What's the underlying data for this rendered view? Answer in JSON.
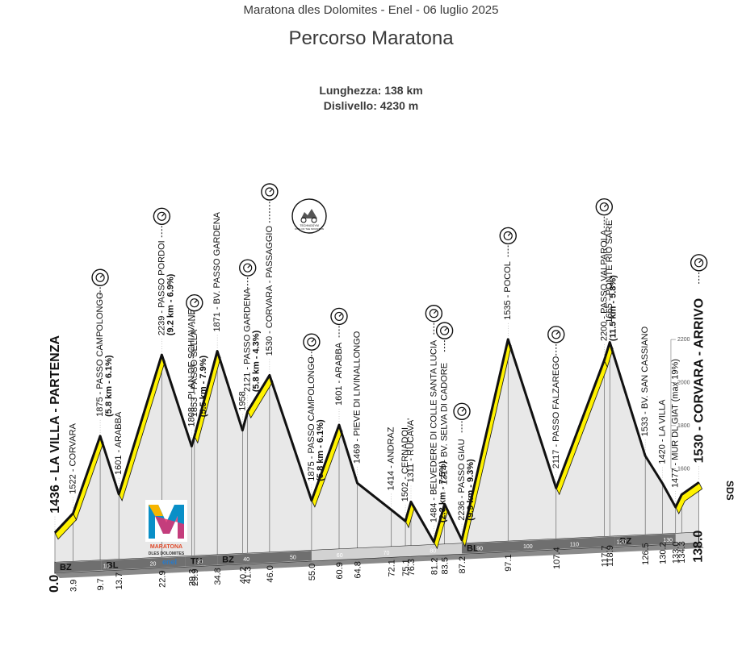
{
  "header": {
    "event": "Maratona dles Dolomites - Enel - 06 luglio 2025",
    "title": "Percorso Maratona",
    "length": "Lunghezza: 138 km",
    "climb": "Dislivello: 4230 m"
  },
  "logo": {
    "line1": "MARATONA",
    "line2": "DLES DOLOMITES",
    "brand": "enel"
  },
  "badge": {
    "line1": "TECHNOGYM",
    "line2": "KING OF THE MOUNTAIN"
  },
  "brand_mark": "SDS",
  "colors": {
    "climb": "#fff200",
    "profile_fill": "#e8e8e8",
    "outline": "#111111"
  },
  "icons": [
    "timing-icon",
    "cyclist-icon"
  ],
  "chart_data": {
    "type": "area",
    "title": "Percorso Maratona",
    "xlabel": "",
    "ylabel": "",
    "xlim": [
      0,
      138
    ],
    "ylim": [
      1300,
      2300
    ],
    "grid": false,
    "y_ticks": [
      1600,
      1800,
      2000,
      2200
    ],
    "x_ticks": [
      10,
      20,
      30,
      40,
      50,
      60,
      70,
      80,
      90,
      100,
      110,
      120,
      130
    ],
    "zones": [
      {
        "label": "BZ",
        "from": 0,
        "to": 10
      },
      {
        "label": "BL",
        "from": 10,
        "to": 28
      },
      {
        "label": "TN",
        "from": 28,
        "to": 34.8
      },
      {
        "label": "BZ",
        "from": 34.8,
        "to": 55
      },
      {
        "label": "BL",
        "from": 87.2,
        "to": 120
      },
      {
        "label": "BZ",
        "from": 120,
        "to": 133
      }
    ],
    "km_labels": [
      "0.0",
      "3.9",
      "9.7",
      "13.7",
      "22.9",
      "29.3",
      "29.9",
      "34.8",
      "40.2",
      "41.3",
      "46.0",
      "55.0",
      "60.9",
      "64.8",
      "72.1",
      "75.1",
      "76.3",
      "81.2",
      "83.5",
      "87.2",
      "97.1",
      "107.4",
      "117.7",
      "118.9",
      "126.5",
      "130.2",
      "133.0",
      "134.3",
      "138.0"
    ],
    "profile": [
      {
        "x": 0,
        "y": 1436
      },
      {
        "x": 3.9,
        "y": 1522
      },
      {
        "x": 9.7,
        "y": 1875
      },
      {
        "x": 13.7,
        "y": 1601
      },
      {
        "x": 22.9,
        "y": 2239
      },
      {
        "x": 29.3,
        "y": 1808
      },
      {
        "x": 29.9,
        "y": 1853
      },
      {
        "x": 34.8,
        "y": 2244
      },
      {
        "x": 40.2,
        "y": 1871
      },
      {
        "x": 41.3,
        "y": 1958
      },
      {
        "x": 46.0,
        "y": 2121
      },
      {
        "x": 55.0,
        "y": 1530
      },
      {
        "x": 60.9,
        "y": 1875
      },
      {
        "x": 64.8,
        "y": 1601
      },
      {
        "x": 72.1,
        "y": 1469
      },
      {
        "x": 75.1,
        "y": 1414
      },
      {
        "x": 76.3,
        "y": 1502
      },
      {
        "x": 81.2,
        "y": 1311
      },
      {
        "x": 83.5,
        "y": 1484
      },
      {
        "x": 87.2,
        "y": 1314
      },
      {
        "x": 97.1,
        "y": 2236
      },
      {
        "x": 107.4,
        "y": 1535
      },
      {
        "x": 117.7,
        "y": 2117
      },
      {
        "x": 118.9,
        "y": 2200
      },
      {
        "x": 126.5,
        "y": 1665
      },
      {
        "x": 130.2,
        "y": 1533
      },
      {
        "x": 133.0,
        "y": 1420
      },
      {
        "x": 134.3,
        "y": 1477
      },
      {
        "x": 138.0,
        "y": 1530
      }
    ],
    "climbs": [
      [
        0,
        3.9
      ],
      [
        3.9,
        9.7
      ],
      [
        13.7,
        22.9
      ],
      [
        29.9,
        34.8
      ],
      [
        41.3,
        46.0
      ],
      [
        55.0,
        60.9
      ],
      [
        75.1,
        76.3
      ],
      [
        81.2,
        83.5
      ],
      [
        87.2,
        97.1
      ],
      [
        107.4,
        117.7
      ],
      [
        117.7,
        118.9
      ],
      [
        133.0,
        138.0
      ]
    ],
    "annotations": [
      {
        "text": "1436 - LA VILLA - PARTENZA",
        "x": 0,
        "big": true
      },
      {
        "text": "1522 - CORVARA",
        "x": 3.9
      },
      {
        "text": "1875 - PASSO CAMPOLONGO",
        "x": 9.7,
        "sub": "(5.8 km - 6.1%)",
        "timing": true
      },
      {
        "text": "1601 - ARABBA",
        "x": 13.7
      },
      {
        "text": "2239 - PASSO PORDOI",
        "x": 22.9,
        "sub": "(9.2 km - 6.9%)",
        "timing": true
      },
      {
        "text": "1808 - PLAN DE SCHIAVANEIS",
        "x": 29.3
      },
      {
        "text": "1853 - PASSO SELLA",
        "x": 29.9,
        "sub": "(5.5 km - 7.9%)",
        "timing": true
      },
      {
        "text": "1871 - BV. PASSO GARDENA",
        "x": 34.8
      },
      {
        "text": "1958",
        "x": 40.2
      },
      {
        "text": "2121 - PASSO GARDENA",
        "x": 41.3,
        "sub": "(5.8 km - 4.3%)",
        "timing": true
      },
      {
        "text": "1530 - CORVARA - PASSAGGIO",
        "x": 46.0,
        "timing": true,
        "badge": true
      },
      {
        "text": "1875 - PASSO CAMPOLONGO",
        "x": 55.0,
        "sub": "(5.8 km - 6.1%)",
        "timing": true
      },
      {
        "text": "1601 - ARABBA",
        "x": 60.9,
        "timing": true
      },
      {
        "text": "1469 - PIEVE DI LIVINALLONGO",
        "x": 64.8
      },
      {
        "text": "1414 - ANDRAZ",
        "x": 72.1
      },
      {
        "text": "1502 - CERNADOI",
        "x": 75.1
      },
      {
        "text": "1311 - RUCAVA'",
        "x": 76.3
      },
      {
        "text": "1484 - BELVEDERE DI COLLE SANTA LUCIA",
        "x": 81.2,
        "sub": "(2.3 km - 7.5%)",
        "timing": true
      },
      {
        "text": "1314 - BV. SELVA DI CADORE",
        "x": 83.5,
        "timing": true
      },
      {
        "text": "2236 - PASSO GIAU",
        "x": 87.2,
        "sub": "(9.9 km - 9.3%)",
        "timing": true
      },
      {
        "text": "1535 - POCOL",
        "x": 97.1,
        "timing": true
      },
      {
        "text": "2117 - PASSO FALZAREGO",
        "x": 107.4,
        "timing": true
      },
      {
        "text": "2200 - PASSO VALPAROLA",
        "x": 117.7,
        "sub": "(11.5 km - 5.8%)",
        "timing": true
      },
      {
        "text": "1665 - PONTE RIO SARE'",
        "x": 118.9
      },
      {
        "text": "1533 - BV. SAN CASSIANO",
        "x": 126.5
      },
      {
        "text": "1420 - LA VILLA",
        "x": 130.2
      },
      {
        "text": "1477 - MUR DL GIAT (max 19%)",
        "x": 133.0
      },
      {
        "text": "1530 - CORVARA - ARRIVO",
        "x": 138.0,
        "big": true,
        "timing": true
      }
    ]
  }
}
